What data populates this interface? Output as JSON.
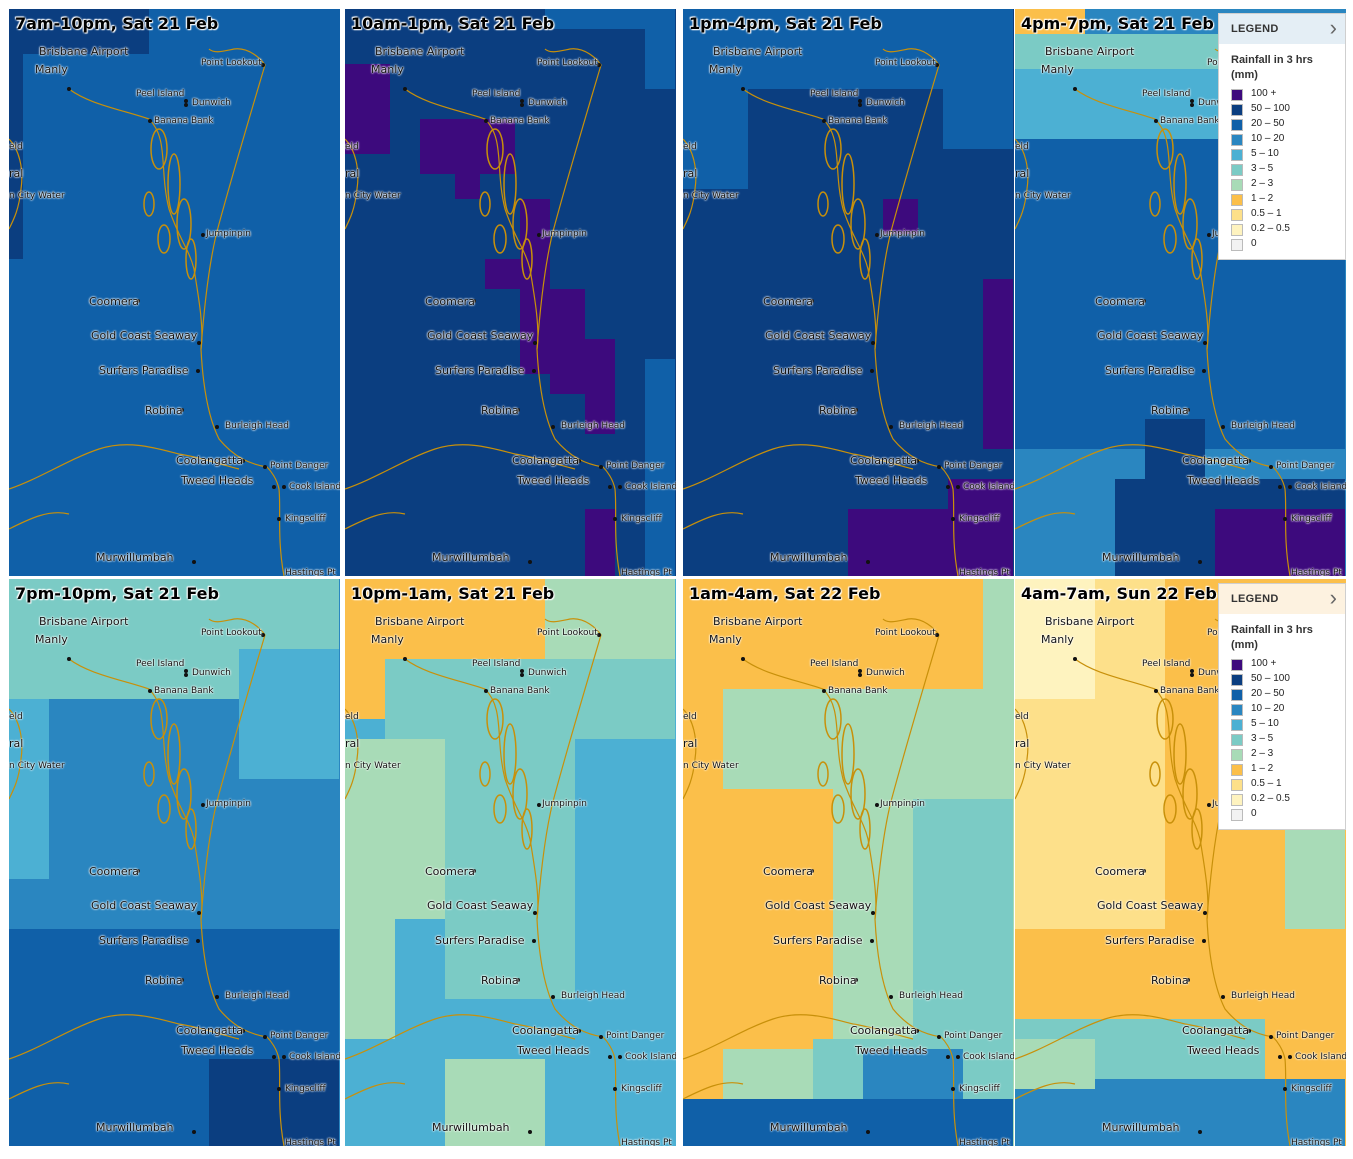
{
  "colors": {
    "c100": "#3d0a7d",
    "c50": "#0b3e80",
    "c20": "#1060a8",
    "c10": "#2a86c0",
    "c5": "#4cb0d3",
    "c3": "#7bcbc5",
    "c2": "#a8dbb7",
    "c1": "#fbbf4a",
    "c05": "#fde08a",
    "c02": "#fef3bf",
    "c0": "#f2f2f2"
  },
  "legend": {
    "title": "LEGEND",
    "chevron": "›",
    "subtitle": "Rainfall in 3 hrs (mm)",
    "items": [
      {
        "label": "100 +",
        "color": "#3d0a7d"
      },
      {
        "label": "50 – 100",
        "color": "#0b3e80"
      },
      {
        "label": "20 – 50",
        "color": "#1060a8"
      },
      {
        "label": "10 – 20",
        "color": "#2a86c0"
      },
      {
        "label": "5 – 10",
        "color": "#4cb0d3"
      },
      {
        "label": "3 – 5",
        "color": "#7bcbc5"
      },
      {
        "label": "2 – 3",
        "color": "#a8dbb7"
      },
      {
        "label": "1 – 2",
        "color": "#fbbf4a"
      },
      {
        "label": "0.5 – 1",
        "color": "#fde08a"
      },
      {
        "label": "0.2 – 0.5",
        "color": "#fef3bf"
      },
      {
        "label": "0",
        "color": "#f2f2f2"
      }
    ]
  },
  "places": [
    {
      "name": "Brisbane Airport",
      "size": "big"
    },
    {
      "name": "Manly",
      "size": "big"
    },
    {
      "name": "Point Lookout",
      "size": "small"
    },
    {
      "name": "Peel Island",
      "size": "small"
    },
    {
      "name": "Dunwich",
      "size": "small"
    },
    {
      "name": "Banana Bank",
      "size": "small"
    },
    {
      "name": "eld",
      "size": "small"
    },
    {
      "name": "ral",
      "size": "big"
    },
    {
      "name": "n City Water",
      "size": "small"
    },
    {
      "name": "Jumpinpin",
      "size": "small"
    },
    {
      "name": "Coomera",
      "size": "big"
    },
    {
      "name": "Gold Coast Seaway",
      "size": "big"
    },
    {
      "name": "Surfers Paradise",
      "size": "big"
    },
    {
      "name": "Robina",
      "size": "big"
    },
    {
      "name": "Burleigh Head",
      "size": "small"
    },
    {
      "name": "Coolangatta",
      "size": "big"
    },
    {
      "name": "Point Danger",
      "size": "small"
    },
    {
      "name": "Tweed Heads",
      "size": "big"
    },
    {
      "name": "Cook Island",
      "size": "small"
    },
    {
      "name": "Kingscliff",
      "size": "small"
    },
    {
      "name": "Murwillumbah",
      "size": "big"
    },
    {
      "name": "Hastings Pt",
      "size": "small"
    }
  ],
  "panels": [
    {
      "title": "7am-10pm, Sat 21 Feb",
      "legend": false,
      "legend_style": "",
      "base": "c20",
      "overlays": [
        [
          "c50",
          0,
          0,
          140,
          45
        ],
        [
          "c50",
          0,
          0,
          14,
          250
        ]
      ]
    },
    {
      "title": "10am-1pm, Sat 21 Feb",
      "legend": false,
      "legend_style": "",
      "base": "c50",
      "overlays": [
        [
          "c20",
          200,
          0,
          130,
          20
        ],
        [
          "c20",
          300,
          20,
          30,
          60
        ],
        [
          "c20",
          300,
          350,
          30,
          220
        ],
        [
          "c100",
          0,
          55,
          45,
          90
        ],
        [
          "c100",
          75,
          110,
          95,
          55
        ],
        [
          "c100",
          110,
          150,
          25,
          40
        ],
        [
          "c100",
          175,
          190,
          30,
          60
        ],
        [
          "c100",
          140,
          250,
          65,
          30
        ],
        [
          "c100",
          175,
          280,
          65,
          85
        ],
        [
          "c100",
          205,
          330,
          65,
          55
        ],
        [
          "c100",
          240,
          385,
          30,
          40
        ],
        [
          "c100",
          240,
          500,
          30,
          70
        ]
      ]
    },
    {
      "title": "1pm-4pm, Sat 21 Feb",
      "legend": false,
      "legend_style": "",
      "base": "c50",
      "overlays": [
        [
          "c20",
          0,
          0,
          330,
          80
        ],
        [
          "c20",
          0,
          80,
          65,
          100
        ],
        [
          "c20",
          260,
          80,
          70,
          60
        ],
        [
          "c100",
          200,
          190,
          35,
          35
        ],
        [
          "c100",
          300,
          270,
          30,
          170
        ],
        [
          "c100",
          165,
          500,
          165,
          75
        ],
        [
          "c100",
          265,
          470,
          65,
          30
        ]
      ]
    },
    {
      "title": "4pm-7pm, Sat 21 Feb",
      "legend": true,
      "legend_style": "",
      "base": "c10",
      "overlays": [
        [
          "c1",
          0,
          0,
          70,
          30
        ],
        [
          "c3",
          0,
          25,
          330,
          40
        ],
        [
          "c5",
          0,
          60,
          330,
          75
        ],
        [
          "c20",
          0,
          130,
          330,
          310
        ],
        [
          "c50",
          130,
          410,
          60,
          160
        ],
        [
          "c50",
          100,
          470,
          230,
          105
        ],
        [
          "c100",
          200,
          500,
          130,
          75
        ]
      ]
    },
    {
      "title": "7pm-10pm, Sat 21 Feb",
      "legend": false,
      "legend_style": "",
      "base": "c10",
      "overlays": [
        [
          "c3",
          0,
          0,
          330,
          120
        ],
        [
          "c5",
          230,
          70,
          100,
          130
        ],
        [
          "c5",
          0,
          120,
          40,
          180
        ],
        [
          "c20",
          0,
          350,
          330,
          220
        ],
        [
          "c50",
          200,
          480,
          130,
          90
        ]
      ]
    },
    {
      "title": "10pm-1am, Sat 21 Feb",
      "legend": false,
      "legend_style": "",
      "base": "c5",
      "overlays": [
        [
          "c1",
          0,
          0,
          200,
          80
        ],
        [
          "c1",
          0,
          80,
          40,
          60
        ],
        [
          "c2",
          200,
          0,
          130,
          90
        ],
        [
          "c3",
          40,
          80,
          290,
          80
        ],
        [
          "c2",
          0,
          160,
          100,
          180
        ],
        [
          "c3",
          100,
          160,
          130,
          260
        ],
        [
          "c2",
          0,
          340,
          50,
          120
        ],
        [
          "c2",
          100,
          480,
          100,
          90
        ]
      ]
    },
    {
      "title": "1am-4am, Sat 22 Feb",
      "legend": false,
      "legend_style": "",
      "base": "c2",
      "overlays": [
        [
          "c1",
          0,
          0,
          300,
          110
        ],
        [
          "c1",
          0,
          110,
          40,
          460
        ],
        [
          "c1",
          40,
          210,
          110,
          260
        ],
        [
          "c3",
          230,
          220,
          100,
          270
        ],
        [
          "c3",
          130,
          460,
          200,
          60
        ],
        [
          "c20",
          0,
          520,
          330,
          50
        ],
        [
          "c10",
          180,
          470,
          100,
          50
        ]
      ]
    },
    {
      "title": "4am-7am, Sun 22 Feb",
      "legend": true,
      "legend_style": "warm",
      "base": "c1",
      "overlays": [
        [
          "c05",
          0,
          0,
          150,
          350
        ],
        [
          "c02",
          0,
          0,
          80,
          120
        ],
        [
          "c2",
          270,
          250,
          60,
          100
        ],
        [
          "c05",
          280,
          120,
          50,
          130
        ],
        [
          "c3",
          0,
          440,
          250,
          70
        ],
        [
          "c10",
          0,
          500,
          330,
          70
        ],
        [
          "c2",
          0,
          460,
          80,
          50
        ]
      ]
    }
  ]
}
